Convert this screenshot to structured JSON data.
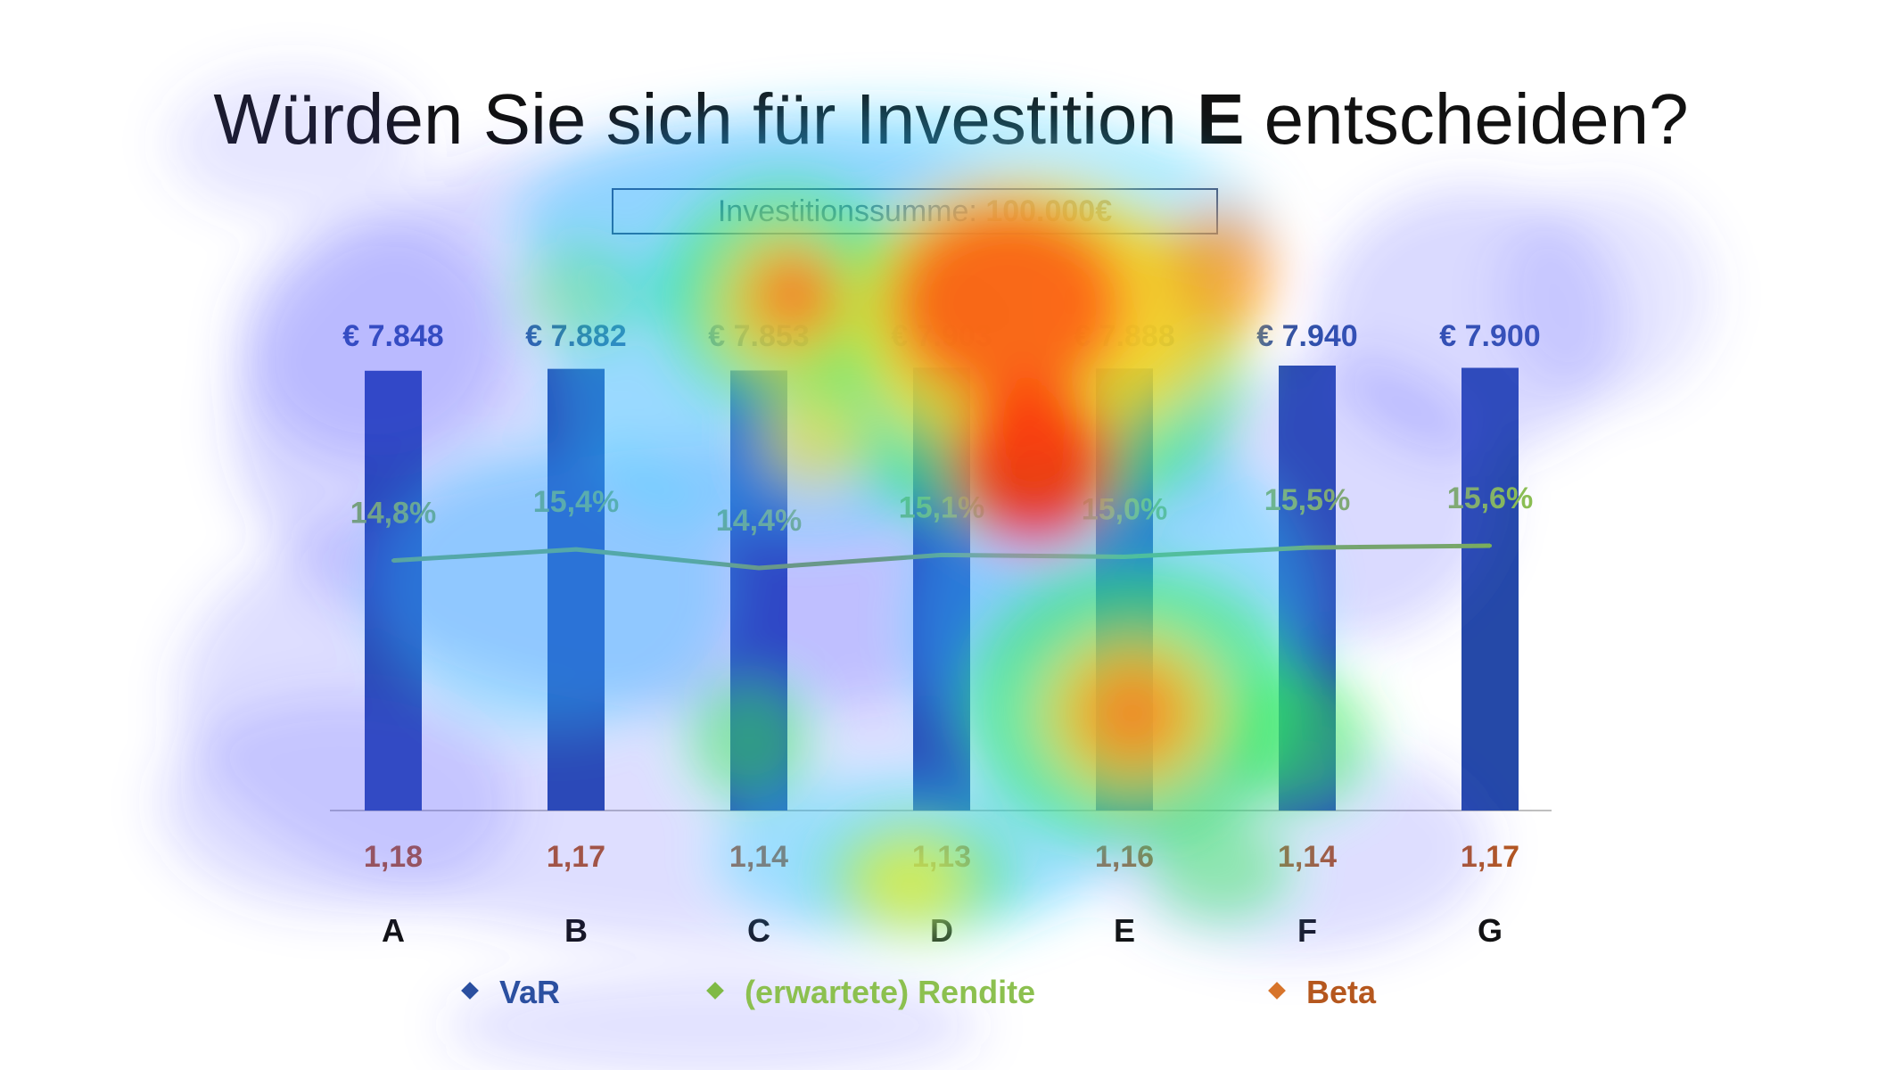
{
  "title": {
    "prefix": "Würden Sie sich für Investition ",
    "highlight": "E",
    "suffix": " entscheiden?"
  },
  "summary_box": {
    "label": "Investitionssumme: ",
    "amount": "100.000€"
  },
  "colors": {
    "bar": "#2549a8",
    "line": "#7fba45",
    "rendite_label": "#8cc04f",
    "beta_label": "#b5571e",
    "var_label": "#2b4fa0",
    "category_label": "#111111"
  },
  "chart_data": {
    "type": "bar",
    "categories": [
      "A",
      "B",
      "C",
      "D",
      "E",
      "F",
      "G"
    ],
    "series": [
      {
        "name": "VaR",
        "values": [
          7848,
          7882,
          7853,
          7903,
          7888,
          7940,
          7900
        ],
        "labels": [
          "€ 7.848",
          "€ 7.882",
          "€ 7.853",
          "€ 7.903",
          "€ 7.888",
          "€ 7.940",
          "€ 7.900"
        ]
      },
      {
        "name": "(erwartete) Rendite",
        "values": [
          14.8,
          15.4,
          14.4,
          15.1,
          15.0,
          15.5,
          15.6
        ],
        "labels": [
          "14,8%",
          "15,4%",
          "14,4%",
          "15,1%",
          "15,0%",
          "15,5%",
          "15,6%"
        ]
      },
      {
        "name": "Beta",
        "values": [
          1.18,
          1.17,
          1.14,
          1.13,
          1.16,
          1.14,
          1.17
        ],
        "labels": [
          "1,18",
          "1,17",
          "1,14",
          "1,13",
          "1,16",
          "1,14",
          "1,17"
        ]
      }
    ],
    "legend": [
      {
        "name": "VaR",
        "icon": "diamond"
      },
      {
        "name": "(erwartete) Rendite",
        "icon": "diamond"
      },
      {
        "name": "Beta",
        "icon": "diamond"
      }
    ],
    "legend_position": "bottom",
    "grid": false,
    "overlay": "eye-tracking heatmap"
  }
}
